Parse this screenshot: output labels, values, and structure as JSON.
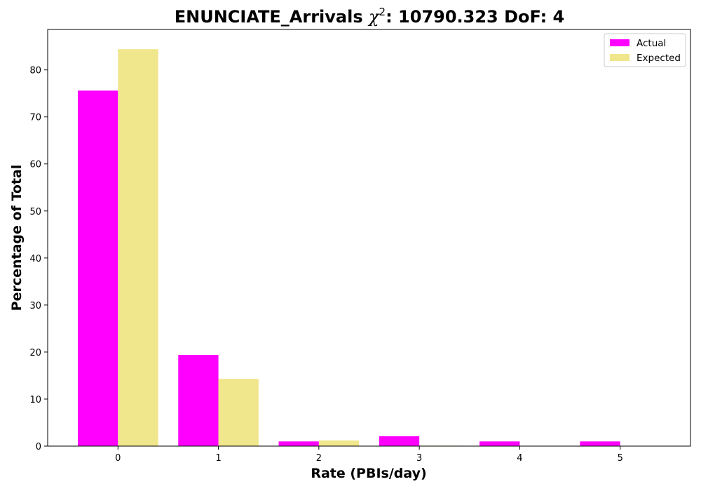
{
  "chart_data": {
    "type": "bar",
    "title_prefix": "ENUNCIATE_Arrivals ",
    "title_chi": "χ",
    "title_sup": "2",
    "title_suffix": ": 10790.323 DoF: 4",
    "xlabel": "Rate (PBIs/day)",
    "ylabel": "Percentage of Total",
    "categories": [
      "0",
      "1",
      "2",
      "3",
      "4",
      "5"
    ],
    "x": [
      0,
      1,
      2,
      3,
      4,
      5
    ],
    "xlim": [
      -0.7,
      5.7
    ],
    "ylim": [
      0,
      88.6
    ],
    "yticks": [
      0,
      10,
      20,
      30,
      40,
      50,
      60,
      70,
      80
    ],
    "grid": false,
    "legend_position": "top-right",
    "series": [
      {
        "name": "Actual",
        "color": "#ff00ff",
        "values": [
          75.6,
          19.4,
          1.0,
          2.1,
          1.0,
          1.0
        ]
      },
      {
        "name": "Expected",
        "color": "#f0e68c",
        "values": [
          84.4,
          14.3,
          1.2,
          0.1,
          0.0,
          0.0
        ]
      }
    ]
  }
}
